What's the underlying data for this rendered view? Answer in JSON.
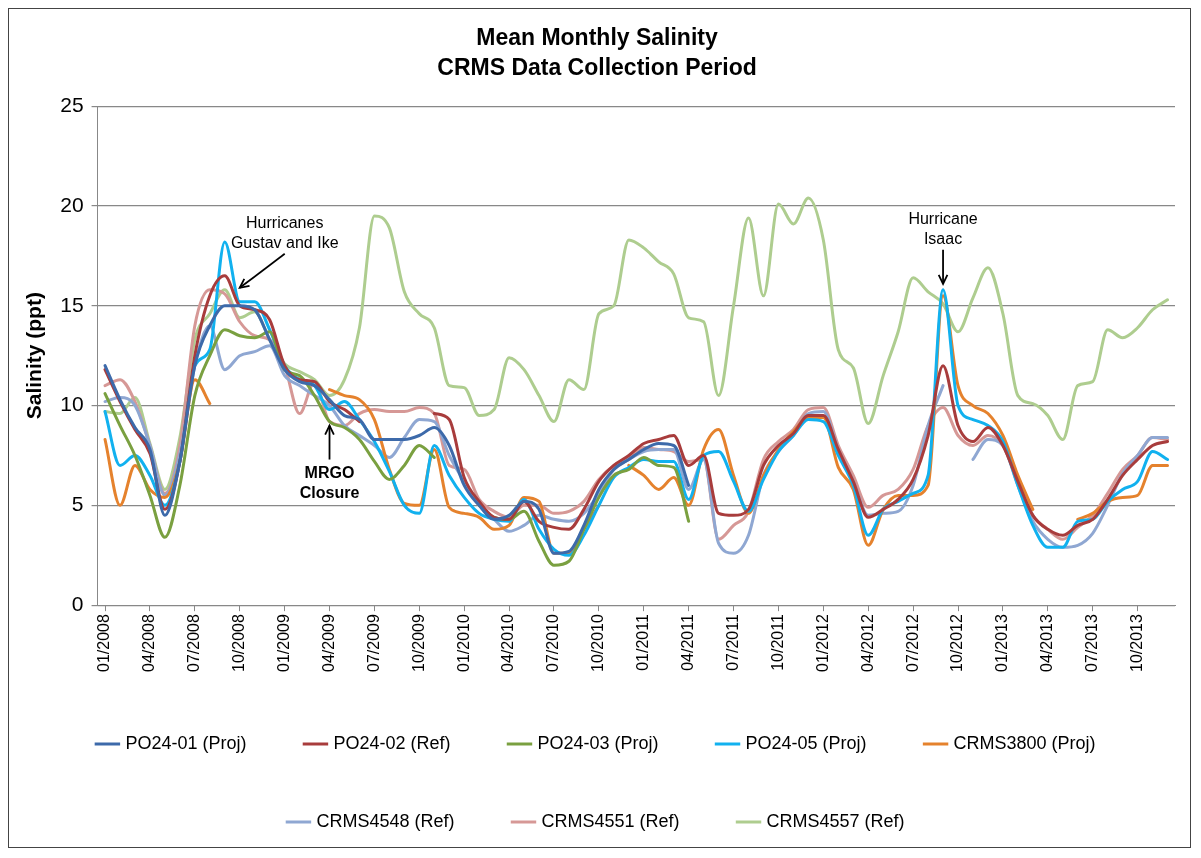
{
  "chart_data": {
    "type": "line",
    "title": "Mean Monthly Salinity",
    "subtitle": "CRMS Data Collection Period",
    "ylabel": "Salinity (ppt)",
    "x": [
      "2008-01",
      "2008-02",
      "2008-03",
      "2008-04",
      "2008-05",
      "2008-06",
      "2008-07",
      "2008-08",
      "2008-09",
      "2008-10",
      "2008-11",
      "2008-12",
      "2009-01",
      "2009-02",
      "2009-03",
      "2009-04",
      "2009-05",
      "2009-06",
      "2009-07",
      "2009-08",
      "2009-09",
      "2009-10",
      "2009-11",
      "2009-12",
      "2010-01",
      "2010-02",
      "2010-03",
      "2010-04",
      "2010-05",
      "2010-06",
      "2010-07",
      "2010-08",
      "2010-09",
      "2010-10",
      "2010-11",
      "2010-12",
      "2011-01",
      "2011-02",
      "2011-03",
      "2011-04",
      "2011-05",
      "2011-06",
      "2011-07",
      "2011-08",
      "2011-09",
      "2011-10",
      "2011-11",
      "2011-12",
      "2012-01",
      "2012-02",
      "2012-03",
      "2012-04",
      "2012-05",
      "2012-06",
      "2012-07",
      "2012-08",
      "2012-09",
      "2012-10",
      "2012-11",
      "2012-12",
      "2013-01",
      "2013-02",
      "2013-03",
      "2013-04",
      "2013-05",
      "2013-06",
      "2013-07",
      "2013-08",
      "2013-09",
      "2013-10",
      "2013-11",
      "2013-12"
    ],
    "xlim": [
      "2007-12-16",
      "2013-12-16"
    ],
    "xticks": [
      {
        "value": "2008-01",
        "label": "01/2008"
      },
      {
        "value": "2008-04",
        "label": "04/2008"
      },
      {
        "value": "2008-07",
        "label": "07/2008"
      },
      {
        "value": "2008-10",
        "label": "10/2008"
      },
      {
        "value": "2009-01",
        "label": "01/2009"
      },
      {
        "value": "2009-04",
        "label": "04/2009"
      },
      {
        "value": "2009-07",
        "label": "07/2009"
      },
      {
        "value": "2009-10",
        "label": "10/2009"
      },
      {
        "value": "2010-01",
        "label": "01/2010"
      },
      {
        "value": "2010-04",
        "label": "04/2010"
      },
      {
        "value": "2010-07",
        "label": "07/2010"
      },
      {
        "value": "2010-10",
        "label": "10/2010"
      },
      {
        "value": "2011-01",
        "label": "01/2011"
      },
      {
        "value": "2011-04",
        "label": "04/2011"
      },
      {
        "value": "2011-07",
        "label": "07/2011"
      },
      {
        "value": "2011-10",
        "label": "10/2011"
      },
      {
        "value": "2012-01",
        "label": "01/2012"
      },
      {
        "value": "2012-04",
        "label": "04/2012"
      },
      {
        "value": "2012-07",
        "label": "07/2012"
      },
      {
        "value": "2012-10",
        "label": "10/2012"
      },
      {
        "value": "2013-01",
        "label": "01/2013"
      },
      {
        "value": "2013-04",
        "label": "04/2013"
      },
      {
        "value": "2013-07",
        "label": "07/2013"
      },
      {
        "value": "2013-10",
        "label": "10/2013"
      }
    ],
    "ylim": [
      0,
      25
    ],
    "yticks": [
      0,
      5,
      10,
      15,
      20,
      25
    ],
    "grid": "y",
    "legend": "bottom",
    "marker": "none",
    "line_style": "solid",
    "series": [
      {
        "name": "PO24-01 (Proj)",
        "color": "#3d6aaa",
        "values": [
          12.0,
          10.3,
          8.9,
          7.8,
          4.5,
          7.2,
          12.0,
          14.0,
          15.0,
          15.0,
          14.8,
          13.3,
          11.8,
          11.2,
          11.0,
          10.3,
          9.5,
          9.3,
          8.3,
          8.3,
          8.3,
          8.5,
          8.9,
          8.0,
          6.0,
          5.0,
          4.3,
          4.5,
          5.2,
          4.8,
          2.6,
          2.7,
          4.0,
          5.8,
          6.8,
          7.3,
          7.8,
          8.1,
          8.0,
          6.0,
          null,
          null,
          null,
          null,
          null,
          null,
          null,
          null,
          null,
          null,
          null,
          null,
          null,
          null,
          null,
          null,
          null,
          null,
          null,
          null,
          null,
          null,
          null,
          null,
          null,
          null,
          null,
          null,
          null,
          null,
          null,
          null
        ]
      },
      {
        "name": "PO24-02 (Ref)",
        "color": "#a83c3c",
        "values": [
          11.8,
          10.2,
          8.8,
          7.6,
          4.8,
          7.2,
          12.5,
          15.5,
          16.5,
          15.0,
          14.8,
          14.3,
          12.0,
          11.3,
          11.2,
          10.2,
          9.8,
          9.2,
          null,
          null,
          null,
          null,
          9.6,
          9.3,
          6.4,
          5.2,
          4.4,
          4.3,
          5.2,
          4.2,
          3.9,
          3.8,
          4.8,
          6.2,
          7.0,
          7.5,
          8.1,
          8.3,
          8.5,
          7.0,
          7.5,
          4.6,
          4.5,
          4.8,
          7.0,
          8.0,
          8.6,
          9.5,
          9.5,
          7.8,
          6.2,
          4.4,
          4.8,
          5.3,
          6.3,
          8.5,
          12.0,
          9.0,
          8.2,
          8.9,
          8.0,
          6.2,
          4.5,
          3.8,
          3.5,
          4.0,
          4.3,
          5.3,
          6.5,
          7.3,
          8.0,
          8.2
        ]
      },
      {
        "name": "PO24-03 (Proj)",
        "color": "#7aa040",
        "values": [
          10.6,
          9.0,
          7.5,
          5.5,
          3.4,
          6.0,
          10.5,
          12.5,
          13.8,
          13.5,
          13.4,
          13.7,
          11.8,
          11.5,
          10.5,
          9.2,
          8.9,
          8.3,
          7.2,
          6.3,
          7.0,
          8.0,
          7.4,
          null,
          null,
          5.0,
          4.4,
          4.3,
          4.7,
          3.2,
          2.0,
          2.2,
          3.8,
          5.4,
          6.5,
          6.8,
          7.4,
          7.0,
          6.9,
          4.2,
          null,
          null,
          null,
          null,
          null,
          null,
          null,
          null,
          null,
          null,
          null,
          null,
          null,
          null,
          null,
          null,
          null,
          null,
          null,
          null,
          null,
          null,
          null,
          null,
          null,
          null,
          null,
          null,
          null,
          null,
          null,
          null
        ]
      },
      {
        "name": "PO24-05 (Proj)",
        "color": "#11b1ef",
        "values": [
          9.7,
          7.0,
          7.5,
          6.5,
          5.0,
          7.2,
          12.0,
          12.8,
          18.2,
          15.2,
          15.2,
          13.8,
          12.0,
          11.3,
          11.0,
          9.8,
          10.2,
          9.3,
          8.2,
          6.7,
          5.0,
          4.6,
          8.0,
          6.5,
          5.4,
          4.6,
          4.3,
          4.2,
          5.3,
          3.8,
          2.8,
          2.5,
          3.5,
          5.0,
          6.4,
          6.9,
          7.3,
          7.2,
          7.2,
          5.3,
          7.5,
          7.7,
          6.2,
          4.7,
          6.3,
          7.7,
          8.5,
          9.3,
          9.2,
          7.5,
          6.0,
          3.5,
          4.8,
          5.2,
          5.6,
          6.5,
          15.8,
          10.0,
          9.3,
          9.0,
          8.2,
          6.0,
          4.0,
          2.9,
          2.9,
          4.2,
          4.3,
          5.2,
          5.8,
          6.2,
          7.7,
          7.3
        ]
      },
      {
        "name": "CRMS3800 (Proj)",
        "color": "#e5822d",
        "values": [
          8.3,
          5.0,
          7.0,
          5.8,
          5.4,
          7.2,
          11.3,
          10.1,
          null,
          null,
          null,
          null,
          null,
          null,
          null,
          10.8,
          10.5,
          10.3,
          9.3,
          6.8,
          5.1,
          5.0,
          7.8,
          4.9,
          4.6,
          4.4,
          3.8,
          4.0,
          5.4,
          5.2,
          2.6,
          2.6,
          3.8,
          5.0,
          null,
          7.0,
          6.5,
          5.8,
          6.4,
          5.0,
          7.8,
          8.8,
          6.5,
          4.6,
          6.5,
          7.8,
          8.7,
          9.4,
          9.4,
          6.9,
          5.8,
          3.0,
          4.8,
          5.5,
          5.5,
          6.0,
          15.5,
          11.0,
          10.0,
          9.6,
          8.5,
          6.5,
          4.8,
          null,
          null,
          4.3,
          4.6,
          5.2,
          5.4,
          5.5,
          7.0,
          7.0
        ]
      },
      {
        "name": "CRMS4548 (Ref)",
        "color": "#8fa7d2",
        "values": [
          10.2,
          10.4,
          10.0,
          8.0,
          5.5,
          7.6,
          12.0,
          14.0,
          11.8,
          12.5,
          12.7,
          13.0,
          11.5,
          11.0,
          10.5,
          10.0,
          9.0,
          8.5,
          8.0,
          7.4,
          8.4,
          9.3,
          9.2,
          7.5,
          6.2,
          5.0,
          4.3,
          3.7,
          4.0,
          4.5,
          4.3,
          4.2,
          4.6,
          5.6,
          6.8,
          7.3,
          7.7,
          7.8,
          7.8,
          5.8,
          7.3,
          3.1,
          2.6,
          3.5,
          6.5,
          7.7,
          8.5,
          9.6,
          9.7,
          7.8,
          6.2,
          4.5,
          4.6,
          4.7,
          6.0,
          9.0,
          11.0,
          null,
          7.3,
          8.3,
          8.0,
          6.0,
          4.2,
          3.3,
          2.9,
          3.0,
          3.6,
          5.0,
          6.6,
          7.5,
          8.4,
          8.4
        ]
      },
      {
        "name": "CRMS4551 (Ref)",
        "color": "#d69896",
        "values": [
          11.0,
          11.3,
          10.2,
          8.0,
          5.6,
          8.0,
          14.0,
          15.8,
          15.6,
          14.2,
          13.5,
          13.3,
          12.0,
          9.6,
          11.2,
          9.2,
          9.0,
          9.6,
          9.8,
          9.7,
          9.7,
          9.9,
          9.6,
          7.0,
          6.8,
          5.3,
          4.7,
          4.4,
          5.0,
          5.0,
          4.6,
          4.7,
          5.2,
          6.3,
          7.0,
          7.4,
          7.9,
          7.8,
          7.7,
          7.2,
          7.3,
          3.3,
          4.0,
          4.7,
          7.3,
          8.2,
          8.8,
          9.8,
          9.9,
          8.0,
          6.5,
          4.9,
          5.5,
          5.8,
          6.8,
          9.0,
          9.9,
          8.5,
          8.0,
          8.5,
          8.0,
          6.2,
          4.5,
          3.8,
          3.3,
          3.9,
          4.5,
          5.6,
          6.8,
          7.5,
          8.4,
          8.3
        ]
      },
      {
        "name": "CRMS4557 (Ref)",
        "color": "#aecd8f",
        "values": [
          9.7,
          9.6,
          10.4,
          8.1,
          5.8,
          8.4,
          13.3,
          14.6,
          15.8,
          14.4,
          14.7,
          13.3,
          12.1,
          11.7,
          11.3,
          10.5,
          11.3,
          13.9,
          19.5,
          18.9,
          15.7,
          14.6,
          13.9,
          11.0,
          10.9,
          9.5,
          9.8,
          12.4,
          11.8,
          10.5,
          9.2,
          11.3,
          10.8,
          14.6,
          15.0,
          18.3,
          17.9,
          17.2,
          16.6,
          14.4,
          14.2,
          10.5,
          15.0,
          19.4,
          15.5,
          20.1,
          19.1,
          20.4,
          18.3,
          12.8,
          11.9,
          9.1,
          11.5,
          13.7,
          16.4,
          15.7,
          15.1,
          13.7,
          15.4,
          16.9,
          14.6,
          10.5,
          10.1,
          9.5,
          8.3,
          11.0,
          11.2,
          13.8,
          13.4,
          13.9,
          14.8,
          15.3
        ]
      }
    ],
    "annotations": [
      {
        "text": "Hurricanes\nGustav and Ike",
        "x": "2008-10",
        "y": 15.7
      },
      {
        "text": "MRGO\nClosure",
        "x": "2009-04",
        "y": 9.2
      },
      {
        "text": "Hurricane\nIsaac",
        "x": "2012-09",
        "y": 15.9
      }
    ]
  }
}
